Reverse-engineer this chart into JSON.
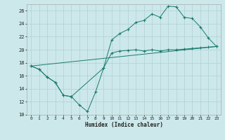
{
  "xlabel": "Humidex (Indice chaleur)",
  "bg_color": "#cce8ea",
  "grid_color": "#b0d0d3",
  "line_color": "#1a7a6e",
  "xlim": [
    -0.5,
    23.5
  ],
  "ylim": [
    10,
    27
  ],
  "yticks": [
    10,
    12,
    14,
    16,
    18,
    20,
    22,
    24,
    26
  ],
  "xticks": [
    0,
    1,
    2,
    3,
    4,
    5,
    6,
    7,
    8,
    9,
    10,
    11,
    12,
    13,
    14,
    15,
    16,
    17,
    18,
    19,
    20,
    21,
    22,
    23
  ],
  "line1_x": [
    0,
    23
  ],
  "line1_y": [
    17.5,
    20.5
  ],
  "line2_x": [
    0,
    1,
    2,
    3,
    4,
    5,
    9,
    10,
    11,
    12,
    13,
    14,
    15,
    16,
    17,
    18,
    19,
    20,
    21,
    22,
    23
  ],
  "line2_y": [
    17.5,
    17.0,
    15.8,
    15.0,
    13.0,
    12.8,
    17.2,
    21.5,
    22.5,
    23.1,
    24.2,
    24.5,
    25.5,
    25.0,
    26.7,
    26.6,
    25.0,
    24.8,
    23.5,
    21.8,
    20.5
  ],
  "line3_x": [
    0,
    1,
    2,
    3,
    4,
    5,
    6,
    7,
    8,
    9,
    10,
    11,
    12,
    13,
    14,
    15,
    16,
    17,
    18,
    19,
    20,
    21,
    22,
    23
  ],
  "line3_y": [
    17.5,
    17.0,
    15.8,
    15.0,
    13.0,
    12.8,
    11.5,
    10.5,
    13.5,
    17.2,
    19.5,
    19.8,
    19.9,
    20.0,
    19.8,
    20.0,
    19.8,
    20.0,
    20.0,
    20.1,
    20.2,
    20.3,
    20.4,
    20.5
  ]
}
